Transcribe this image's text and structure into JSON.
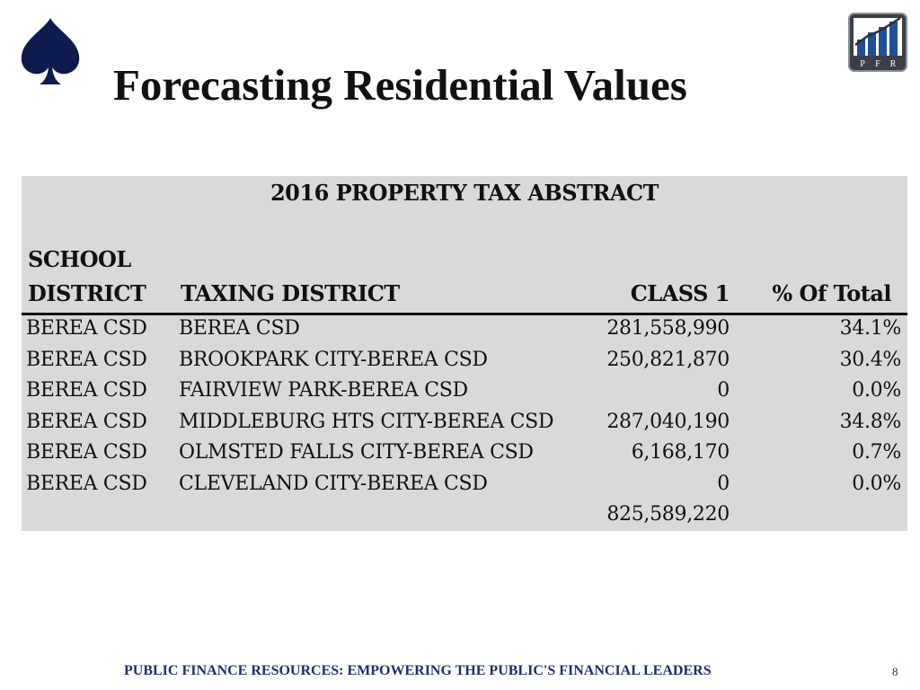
{
  "slide": {
    "title": "Forecasting Residential Values",
    "footer": "PUBLIC FINANCE RESOURCES: EMPOWERING THE PUBLIC'S FINANCIAL LEADERS",
    "page_number": "8"
  },
  "logo": {
    "letters": [
      "P",
      "F",
      "R"
    ],
    "icon": "bar-chart-logo-icon"
  },
  "spade": {
    "icon": "spade-icon",
    "color": "#0d1b4f"
  },
  "table": {
    "caption": "2016 PROPERTY TAX ABSTRACT",
    "headers": {
      "school_line1": "SCHOOL",
      "school_line2": "DISTRICT",
      "taxing": "TAXING DISTRICT",
      "class1": "CLASS 1",
      "pct": "% Of Total"
    },
    "rows": [
      {
        "school": "BEREA CSD",
        "taxing": "BEREA CSD",
        "class1": "281,558,990",
        "pct": "34.1%"
      },
      {
        "school": "BEREA CSD",
        "taxing": "BROOKPARK CITY-BEREA CSD",
        "class1": "250,821,870",
        "pct": "30.4%"
      },
      {
        "school": "BEREA CSD",
        "taxing": "FAIRVIEW PARK-BEREA CSD",
        "class1": "0",
        "pct": "0.0%"
      },
      {
        "school": "BEREA CSD",
        "taxing": "MIDDLEBURG HTS CITY-BEREA CSD",
        "class1": "287,040,190",
        "pct": "34.8%"
      },
      {
        "school": "BEREA CSD",
        "taxing": "OLMSTED FALLS CITY-BEREA CSD",
        "class1": "6,168,170",
        "pct": "0.7%"
      },
      {
        "school": "BEREA CSD",
        "taxing": "CLEVELAND CITY-BEREA CSD",
        "class1": "0",
        "pct": "0.0%"
      },
      {
        "school": "",
        "taxing": "",
        "class1": "825,589,220",
        "pct": ""
      }
    ]
  },
  "colors": {
    "accent": "#0d1b4f",
    "footer_text": "#1f2f6b",
    "table_bg": "#d9d9d9"
  }
}
